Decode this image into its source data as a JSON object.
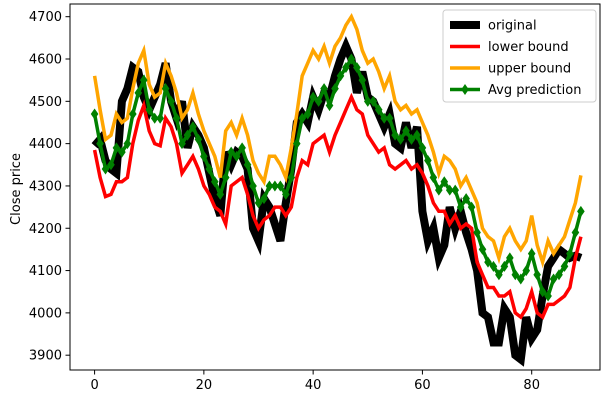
{
  "chart_data": {
    "type": "line",
    "title": "",
    "xlabel": "",
    "ylabel": "Close price",
    "xlim": [
      -4.5,
      92.5
    ],
    "ylim": [
      3865,
      4730
    ],
    "xticks": [
      0,
      20,
      40,
      60,
      80
    ],
    "yticks": [
      3900,
      4000,
      4100,
      4200,
      4300,
      4400,
      4500,
      4600,
      4700
    ],
    "grid": false,
    "legend_position": "upper-right",
    "series": [
      {
        "name": "original",
        "color": "#000000",
        "marker": "none",
        "x": [
          0,
          1,
          2,
          3,
          4,
          5,
          6,
          7,
          8,
          9,
          10,
          11,
          12,
          13,
          14,
          15,
          16,
          17,
          18,
          19,
          20,
          21,
          22,
          23,
          24,
          25,
          26,
          27,
          28,
          29,
          30,
          31,
          32,
          33,
          34,
          35,
          36,
          37,
          38,
          39,
          40,
          41,
          42,
          43,
          44,
          45,
          46,
          47,
          48,
          49,
          50,
          51,
          52,
          53,
          54,
          55,
          56,
          57,
          58,
          59,
          60,
          61,
          62,
          63,
          64,
          65,
          66,
          67,
          68,
          69,
          70,
          71,
          72,
          73,
          74,
          75,
          76,
          77,
          78,
          79,
          80,
          81,
          82,
          83,
          84,
          85,
          86,
          87,
          88,
          89
        ],
        "values": [
          4395,
          4410,
          4360,
          4340,
          4330,
          4500,
          4530,
          4580,
          4570,
          4510,
          4480,
          4510,
          4540,
          4590,
          4500,
          4460,
          4500,
          4390,
          4440,
          4420,
          4390,
          4330,
          4270,
          4230,
          4380,
          4350,
          4380,
          4370,
          4340,
          4200,
          4170,
          4270,
          4250,
          4210,
          4170,
          4260,
          4340,
          4450,
          4470,
          4450,
          4510,
          4480,
          4520,
          4510,
          4560,
          4600,
          4630,
          4600,
          4520,
          4570,
          4510,
          4500,
          4470,
          4440,
          4470,
          4400,
          4390,
          4450,
          4390,
          4440,
          4240,
          4170,
          4200,
          4130,
          4160,
          4250,
          4200,
          4240,
          4190,
          4150,
          4100,
          4000,
          3990,
          3930,
          3930,
          4010,
          3990,
          3900,
          3890,
          3990,
          3940,
          3960,
          4040,
          4110,
          4130,
          4150,
          4140,
          4130,
          4135,
          4130
        ]
      },
      {
        "name": "lower bound",
        "color": "#ff0000",
        "marker": "none",
        "x": [
          0,
          1,
          2,
          3,
          4,
          5,
          6,
          7,
          8,
          9,
          10,
          11,
          12,
          13,
          14,
          15,
          16,
          17,
          18,
          19,
          20,
          21,
          22,
          23,
          24,
          25,
          26,
          27,
          28,
          29,
          30,
          31,
          32,
          33,
          34,
          35,
          36,
          37,
          38,
          39,
          40,
          41,
          42,
          43,
          44,
          45,
          46,
          47,
          48,
          49,
          50,
          51,
          52,
          53,
          54,
          55,
          56,
          57,
          58,
          59,
          60,
          61,
          62,
          63,
          64,
          65,
          66,
          67,
          68,
          69,
          70,
          71,
          72,
          73,
          74,
          75,
          76,
          77,
          78,
          79,
          80,
          81,
          82,
          83,
          84,
          85,
          86,
          87,
          88,
          89
        ],
        "values": [
          4385,
          4320,
          4275,
          4280,
          4310,
          4310,
          4320,
          4400,
          4455,
          4490,
          4430,
          4400,
          4395,
          4460,
          4440,
          4400,
          4330,
          4350,
          4370,
          4340,
          4300,
          4280,
          4250,
          4240,
          4210,
          4300,
          4310,
          4320,
          4280,
          4230,
          4200,
          4220,
          4230,
          4250,
          4250,
          4230,
          4250,
          4320,
          4360,
          4350,
          4400,
          4410,
          4420,
          4380,
          4420,
          4450,
          4480,
          4510,
          4480,
          4470,
          4420,
          4400,
          4380,
          4390,
          4350,
          4340,
          4350,
          4360,
          4340,
          4350,
          4330,
          4300,
          4260,
          4240,
          4240,
          4210,
          4230,
          4200,
          4210,
          4200,
          4120,
          4090,
          4060,
          4060,
          4040,
          4040,
          4050,
          4000,
          3990,
          4010,
          4050,
          4000,
          3990,
          4020,
          4020,
          4030,
          4040,
          4060,
          4130,
          4180
        ]
      },
      {
        "name": "upper bound",
        "color": "#ffa500",
        "marker": "none",
        "x": [
          0,
          1,
          2,
          3,
          4,
          5,
          6,
          7,
          8,
          9,
          10,
          11,
          12,
          13,
          14,
          15,
          16,
          17,
          18,
          19,
          20,
          21,
          22,
          23,
          24,
          25,
          26,
          27,
          28,
          29,
          30,
          31,
          32,
          33,
          34,
          35,
          36,
          37,
          38,
          39,
          40,
          41,
          42,
          43,
          44,
          45,
          46,
          47,
          48,
          49,
          50,
          51,
          52,
          53,
          54,
          55,
          56,
          57,
          58,
          59,
          60,
          61,
          62,
          63,
          64,
          65,
          66,
          67,
          68,
          69,
          70,
          71,
          72,
          73,
          74,
          75,
          76,
          77,
          78,
          79,
          80,
          81,
          82,
          83,
          84,
          85,
          86,
          87,
          88,
          89
        ],
        "values": [
          4560,
          4480,
          4410,
          4420,
          4470,
          4450,
          4460,
          4530,
          4590,
          4620,
          4540,
          4510,
          4520,
          4590,
          4560,
          4520,
          4460,
          4480,
          4520,
          4470,
          4430,
          4400,
          4370,
          4320,
          4430,
          4450,
          4420,
          4460,
          4420,
          4360,
          4330,
          4310,
          4370,
          4370,
          4350,
          4320,
          4390,
          4470,
          4560,
          4590,
          4620,
          4600,
          4630,
          4590,
          4630,
          4650,
          4680,
          4700,
          4670,
          4620,
          4590,
          4600,
          4570,
          4530,
          4560,
          4500,
          4480,
          4490,
          4470,
          4480,
          4450,
          4420,
          4380,
          4330,
          4370,
          4360,
          4340,
          4300,
          4320,
          4290,
          4260,
          4200,
          4180,
          4170,
          4130,
          4180,
          4200,
          4170,
          4150,
          4170,
          4230,
          4160,
          4120,
          4170,
          4140,
          4160,
          4180,
          4220,
          4260,
          4325
        ]
      },
      {
        "name": "Avg prediction",
        "color": "#008000",
        "marker": "diamond",
        "x": [
          0,
          1,
          2,
          3,
          4,
          5,
          6,
          7,
          8,
          9,
          10,
          11,
          12,
          13,
          14,
          15,
          16,
          17,
          18,
          19,
          20,
          21,
          22,
          23,
          24,
          25,
          26,
          27,
          28,
          29,
          30,
          31,
          32,
          33,
          34,
          35,
          36,
          37,
          38,
          39,
          40,
          41,
          42,
          43,
          44,
          45,
          46,
          47,
          48,
          49,
          50,
          51,
          52,
          53,
          54,
          55,
          56,
          57,
          58,
          59,
          60,
          61,
          62,
          63,
          64,
          65,
          66,
          67,
          68,
          69,
          70,
          71,
          72,
          73,
          74,
          75,
          76,
          77,
          78,
          79,
          80,
          81,
          82,
          83,
          84,
          85,
          86,
          87,
          88,
          89
        ],
        "values": [
          4470,
          4400,
          4340,
          4350,
          4390,
          4380,
          4400,
          4470,
          4520,
          4550,
          4480,
          4460,
          4460,
          4530,
          4500,
          4460,
          4400,
          4420,
          4440,
          4410,
          4370,
          4340,
          4310,
          4280,
          4320,
          4380,
          4370,
          4390,
          4350,
          4300,
          4260,
          4270,
          4300,
          4300,
          4300,
          4280,
          4320,
          4400,
          4460,
          4470,
          4510,
          4500,
          4530,
          4490,
          4530,
          4560,
          4580,
          4600,
          4580,
          4550,
          4500,
          4500,
          4480,
          4460,
          4460,
          4420,
          4410,
          4430,
          4410,
          4420,
          4390,
          4360,
          4320,
          4290,
          4310,
          4290,
          4290,
          4250,
          4270,
          4250,
          4190,
          4150,
          4120,
          4110,
          4090,
          4110,
          4130,
          4090,
          4080,
          4100,
          4140,
          4090,
          4050,
          4040,
          4080,
          4090,
          4110,
          4140,
          4190,
          4240
        ]
      }
    ]
  }
}
